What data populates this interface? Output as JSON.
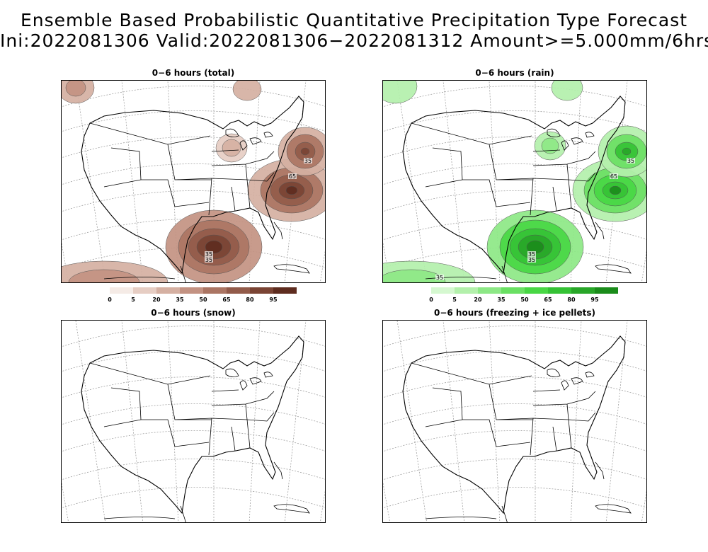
{
  "header": {
    "line1": "Ensemble Based Probabilistic Quantitative Precipitation Type Forecast",
    "line2": "Ini:2022081306 Valid:2022081306−2022081312 Amount>=5.000mm/6hrs"
  },
  "panels": [
    {
      "id": "total",
      "title": "0−6 hours (total)",
      "colors": [
        "#f5ebe6",
        "#e6cdc3",
        "#d5b0a2",
        "#c39282",
        "#ab7563",
        "#925b4a",
        "#7a4434",
        "#5e2c1f"
      ],
      "contour_labels": [
        "35",
        "35",
        "65",
        "35"
      ],
      "legend": {
        "levels": [
          "0",
          "5",
          "20",
          "35",
          "50",
          "65",
          "80",
          "95"
        ]
      }
    },
    {
      "id": "rain",
      "title": "0−6 hours (rain)",
      "colors": [
        "#d5f8d0",
        "#b3f0ab",
        "#8de886",
        "#6ae063",
        "#48d744",
        "#35c235",
        "#28a628",
        "#1b8c1b"
      ],
      "contour_labels": [
        "35",
        "35",
        "65",
        "35",
        "35"
      ],
      "legend": {
        "levels": [
          "0",
          "5",
          "20",
          "35",
          "50",
          "65",
          "80",
          "95"
        ]
      }
    },
    {
      "id": "snow",
      "title": "0−6 hours (snow)"
    },
    {
      "id": "freezing",
      "title": "0−6 hours (freezing + ice pellets)"
    }
  ]
}
